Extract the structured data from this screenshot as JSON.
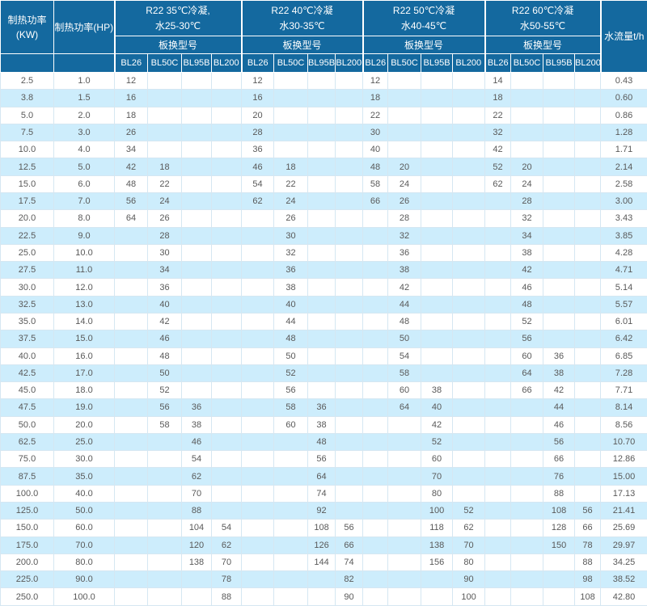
{
  "header": {
    "kw": "制热功率(KW)",
    "hp": "制热功率(HP)",
    "flow": "水流量t/h",
    "model_label": "板换型号",
    "groups": [
      {
        "line1": "R22 35℃冷凝,",
        "line2": "水25-30℃",
        "models": [
          "BL26",
          "BL50C",
          "BL95B",
          "BL200"
        ]
      },
      {
        "line1": "R22 40℃冷凝",
        "line2": "水30-35℃",
        "models": [
          "BL26",
          "BL50C",
          "BL95B",
          "BL200"
        ]
      },
      {
        "line1": "R22 50℃冷凝",
        "line2": "水40-45℃",
        "models": [
          "BL26",
          "BL50C",
          "BL95B",
          "BL200"
        ]
      },
      {
        "line1": "R22 60℃冷凝",
        "line2": "水50-55℃",
        "models": [
          "BL26",
          "BL50C",
          "BL95B",
          "BL200"
        ]
      }
    ]
  },
  "colors": {
    "header_bg": "#14699f",
    "header_text": "#ffffff",
    "stripe_bg": "#cdedfc",
    "body_text": "#595959",
    "grid_line": "#d5e7f2"
  },
  "rows": [
    [
      "2.5",
      "1.0",
      "12",
      "",
      "",
      "",
      "12",
      "",
      "",
      "",
      "12",
      "",
      "",
      "",
      "14",
      "",
      "",
      "",
      "0.43"
    ],
    [
      "3.8",
      "1.5",
      "16",
      "",
      "",
      "",
      "16",
      "",
      "",
      "",
      "18",
      "",
      "",
      "",
      "18",
      "",
      "",
      "",
      "0.60"
    ],
    [
      "5.0",
      "2.0",
      "18",
      "",
      "",
      "",
      "20",
      "",
      "",
      "",
      "22",
      "",
      "",
      "",
      "22",
      "",
      "",
      "",
      "0.86"
    ],
    [
      "7.5",
      "3.0",
      "26",
      "",
      "",
      "",
      "28",
      "",
      "",
      "",
      "30",
      "",
      "",
      "",
      "32",
      "",
      "",
      "",
      "1.28"
    ],
    [
      "10.0",
      "4.0",
      "34",
      "",
      "",
      "",
      "36",
      "",
      "",
      "",
      "40",
      "",
      "",
      "",
      "42",
      "",
      "",
      "",
      "1.71"
    ],
    [
      "12.5",
      "5.0",
      "42",
      "18",
      "",
      "",
      "46",
      "18",
      "",
      "",
      "48",
      "20",
      "",
      "",
      "52",
      "20",
      "",
      "",
      "2.14"
    ],
    [
      "15.0",
      "6.0",
      "48",
      "22",
      "",
      "",
      "54",
      "22",
      "",
      "",
      "58",
      "24",
      "",
      "",
      "62",
      "24",
      "",
      "",
      "2.58"
    ],
    [
      "17.5",
      "7.0",
      "56",
      "24",
      "",
      "",
      "62",
      "24",
      "",
      "",
      "66",
      "26",
      "",
      "",
      "",
      "28",
      "",
      "",
      "3.00"
    ],
    [
      "20.0",
      "8.0",
      "64",
      "26",
      "",
      "",
      "",
      "26",
      "",
      "",
      "",
      "28",
      "",
      "",
      "",
      "32",
      "",
      "",
      "3.43"
    ],
    [
      "22.5",
      "9.0",
      "",
      "28",
      "",
      "",
      "",
      "30",
      "",
      "",
      "",
      "32",
      "",
      "",
      "",
      "34",
      "",
      "",
      "3.85"
    ],
    [
      "25.0",
      "10.0",
      "",
      "30",
      "",
      "",
      "",
      "32",
      "",
      "",
      "",
      "36",
      "",
      "",
      "",
      "38",
      "",
      "",
      "4.28"
    ],
    [
      "27.5",
      "11.0",
      "",
      "34",
      "",
      "",
      "",
      "36",
      "",
      "",
      "",
      "38",
      "",
      "",
      "",
      "42",
      "",
      "",
      "4.71"
    ],
    [
      "30.0",
      "12.0",
      "",
      "36",
      "",
      "",
      "",
      "38",
      "",
      "",
      "",
      "42",
      "",
      "",
      "",
      "46",
      "",
      "",
      "5.14"
    ],
    [
      "32.5",
      "13.0",
      "",
      "40",
      "",
      "",
      "",
      "40",
      "",
      "",
      "",
      "44",
      "",
      "",
      "",
      "48",
      "",
      "",
      "5.57"
    ],
    [
      "35.0",
      "14.0",
      "",
      "42",
      "",
      "",
      "",
      "44",
      "",
      "",
      "",
      "48",
      "",
      "",
      "",
      "52",
      "",
      "",
      "6.01"
    ],
    [
      "37.5",
      "15.0",
      "",
      "46",
      "",
      "",
      "",
      "48",
      "",
      "",
      "",
      "50",
      "",
      "",
      "",
      "56",
      "",
      "",
      "6.42"
    ],
    [
      "40.0",
      "16.0",
      "",
      "48",
      "",
      "",
      "",
      "50",
      "",
      "",
      "",
      "54",
      "",
      "",
      "",
      "60",
      "36",
      "",
      "6.85"
    ],
    [
      "42.5",
      "17.0",
      "",
      "50",
      "",
      "",
      "",
      "52",
      "",
      "",
      "",
      "58",
      "",
      "",
      "",
      "64",
      "38",
      "",
      "7.28"
    ],
    [
      "45.0",
      "18.0",
      "",
      "52",
      "",
      "",
      "",
      "56",
      "",
      "",
      "",
      "60",
      "38",
      "",
      "",
      "66",
      "42",
      "",
      "7.71"
    ],
    [
      "47.5",
      "19.0",
      "",
      "56",
      "36",
      "",
      "",
      "58",
      "36",
      "",
      "",
      "64",
      "40",
      "",
      "",
      "",
      "44",
      "",
      "8.14"
    ],
    [
      "50.0",
      "20.0",
      "",
      "58",
      "38",
      "",
      "",
      "60",
      "38",
      "",
      "",
      "",
      "42",
      "",
      "",
      "",
      "46",
      "",
      "8.56"
    ],
    [
      "62.5",
      "25.0",
      "",
      "",
      "46",
      "",
      "",
      "",
      "48",
      "",
      "",
      "",
      "52",
      "",
      "",
      "",
      "56",
      "",
      "10.70"
    ],
    [
      "75.0",
      "30.0",
      "",
      "",
      "54",
      "",
      "",
      "",
      "56",
      "",
      "",
      "",
      "60",
      "",
      "",
      "",
      "66",
      "",
      "12.86"
    ],
    [
      "87.5",
      "35.0",
      "",
      "",
      "62",
      "",
      "",
      "",
      "64",
      "",
      "",
      "",
      "70",
      "",
      "",
      "",
      "76",
      "",
      "15.00"
    ],
    [
      "100.0",
      "40.0",
      "",
      "",
      "70",
      "",
      "",
      "",
      "74",
      "",
      "",
      "",
      "80",
      "",
      "",
      "",
      "88",
      "",
      "17.13"
    ],
    [
      "125.0",
      "50.0",
      "",
      "",
      "88",
      "",
      "",
      "",
      "92",
      "",
      "",
      "",
      "100",
      "52",
      "",
      "",
      "108",
      "56",
      "21.41"
    ],
    [
      "150.0",
      "60.0",
      "",
      "",
      "104",
      "54",
      "",
      "",
      "108",
      "56",
      "",
      "",
      "118",
      "62",
      "",
      "",
      "128",
      "66",
      "25.69"
    ],
    [
      "175.0",
      "70.0",
      "",
      "",
      "120",
      "62",
      "",
      "",
      "126",
      "66",
      "",
      "",
      "138",
      "70",
      "",
      "",
      "150",
      "78",
      "29.97"
    ],
    [
      "200.0",
      "80.0",
      "",
      "",
      "138",
      "70",
      "",
      "",
      "144",
      "74",
      "",
      "",
      "156",
      "80",
      "",
      "",
      "",
      "88",
      "34.25"
    ],
    [
      "225.0",
      "90.0",
      "",
      "",
      "",
      "78",
      "",
      "",
      "",
      "82",
      "",
      "",
      "",
      "90",
      "",
      "",
      "",
      "98",
      "38.52"
    ],
    [
      "250.0",
      "100.0",
      "",
      "",
      "",
      "88",
      "",
      "",
      "",
      "90",
      "",
      "",
      "",
      "100",
      "",
      "",
      "",
      "108",
      "42.80"
    ]
  ]
}
